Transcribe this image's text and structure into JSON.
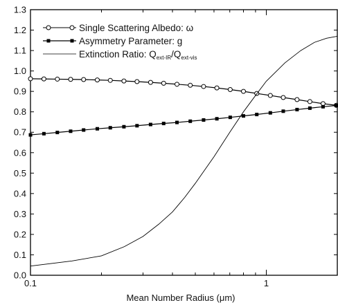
{
  "chart_data": {
    "type": "line",
    "xscale": "log",
    "xlim": [
      0.1,
      2.0
    ],
    "ylim": [
      0.0,
      1.3
    ],
    "xlabel": "Mean Number Radius (μm)",
    "ylabel": "",
    "grid": false,
    "legend_position": "top-left",
    "x_ticks": [
      {
        "value": 0.1,
        "label": "0.1"
      },
      {
        "value": 1,
        "label": "1"
      }
    ],
    "y_ticks": [
      {
        "value": 0.0,
        "label": "0.0"
      },
      {
        "value": 0.1,
        "label": "0.1"
      },
      {
        "value": 0.2,
        "label": "0.2"
      },
      {
        "value": 0.3,
        "label": "0.3"
      },
      {
        "value": 0.4,
        "label": "0.4"
      },
      {
        "value": 0.5,
        "label": "0.5"
      },
      {
        "value": 0.6,
        "label": "0.6"
      },
      {
        "value": 0.7,
        "label": "0.7"
      },
      {
        "value": 0.8,
        "label": "0.8"
      },
      {
        "value": 0.9,
        "label": "0.9"
      },
      {
        "value": 1.0,
        "label": "1.0"
      },
      {
        "value": 1.1,
        "label": "1.1"
      },
      {
        "value": 1.2,
        "label": "1.2"
      },
      {
        "value": 1.3,
        "label": "1.3"
      }
    ],
    "series": [
      {
        "name": "Single Scattering Albedo: ω",
        "marker": "open-circle",
        "color": "#000000",
        "x": [
          0.1,
          0.114,
          0.13,
          0.148,
          0.168,
          0.192,
          0.218,
          0.249,
          0.283,
          0.323,
          0.367,
          0.418,
          0.476,
          0.542,
          0.617,
          0.703,
          0.8,
          0.911,
          1.04,
          1.18,
          1.35,
          1.53,
          1.74,
          1.98
        ],
        "values": [
          0.962,
          0.961,
          0.96,
          0.959,
          0.958,
          0.956,
          0.954,
          0.951,
          0.948,
          0.944,
          0.94,
          0.935,
          0.93,
          0.924,
          0.917,
          0.909,
          0.9,
          0.89,
          0.88,
          0.87,
          0.86,
          0.85,
          0.84,
          0.832
        ]
      },
      {
        "name": "Asymmetry Parameter: g",
        "marker": "filled-square",
        "color": "#000000",
        "x": [
          0.1,
          0.114,
          0.13,
          0.148,
          0.168,
          0.192,
          0.218,
          0.249,
          0.283,
          0.323,
          0.367,
          0.418,
          0.476,
          0.542,
          0.617,
          0.703,
          0.8,
          0.911,
          1.04,
          1.18,
          1.35,
          1.53,
          1.74,
          1.98
        ],
        "values": [
          0.687,
          0.693,
          0.699,
          0.705,
          0.711,
          0.717,
          0.722,
          0.727,
          0.732,
          0.738,
          0.743,
          0.748,
          0.754,
          0.76,
          0.766,
          0.773,
          0.78,
          0.787,
          0.795,
          0.803,
          0.811,
          0.818,
          0.825,
          0.831
        ]
      },
      {
        "name": "Extinction Ratio: Q",
        "name_sub1": "ext-IR",
        "name_slash": "/Q",
        "name_sub2": "ext-vis",
        "marker": "none",
        "color": "#000000",
        "x": [
          0.1,
          0.15,
          0.2,
          0.25,
          0.3,
          0.35,
          0.4,
          0.45,
          0.5,
          0.6,
          0.7,
          0.8,
          0.9,
          1.0,
          1.2,
          1.4,
          1.6,
          1.8,
          2.0
        ],
        "values": [
          0.045,
          0.07,
          0.095,
          0.14,
          0.19,
          0.25,
          0.31,
          0.38,
          0.45,
          0.58,
          0.7,
          0.8,
          0.88,
          0.95,
          1.04,
          1.1,
          1.14,
          1.16,
          1.17
        ]
      }
    ]
  }
}
